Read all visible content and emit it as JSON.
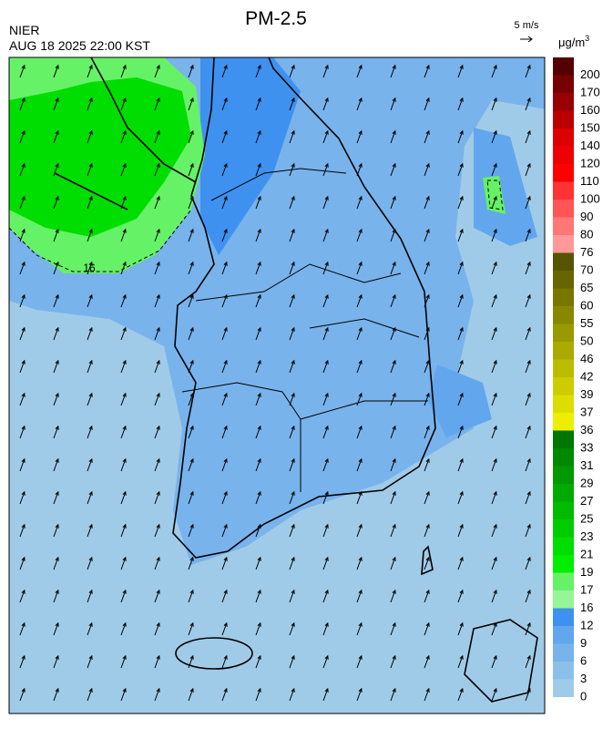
{
  "header": {
    "title": "PM-2.5",
    "source": "NIER",
    "timestamp": "AUG 18 2025 22:00 KST",
    "wind_reference": "5 m/s"
  },
  "colorbar": {
    "unit": "μg/m",
    "unit_exponent": "3",
    "levels": [
      0,
      3,
      6,
      9,
      12,
      16,
      17,
      19,
      21,
      23,
      25,
      27,
      29,
      31,
      33,
      36,
      37,
      39,
      42,
      46,
      50,
      55,
      60,
      65,
      70,
      76,
      80,
      90,
      100,
      110,
      120,
      140,
      150,
      160,
      170,
      200
    ],
    "colors": [
      "#a0cbe8",
      "#8cc0ea",
      "#78b3ec",
      "#62a6ee",
      "#3f91f0",
      "#96f596",
      "#66f266",
      "#00ee00",
      "#00dd00",
      "#00cc00",
      "#00bb00",
      "#00aa00",
      "#009900",
      "#008800",
      "#007700",
      "#eeee00",
      "#dddd00",
      "#cccc00",
      "#bbbb00",
      "#aaaa00",
      "#999900",
      "#888800",
      "#777700",
      "#666600",
      "#555500",
      "#ff9999",
      "#ff7777",
      "#ff5555",
      "#ff3333",
      "#ff0000",
      "#ee0000",
      "#dd0000",
      "#bb0000",
      "#990000",
      "#770000",
      "#550000"
    ]
  },
  "map": {
    "contour_label": "16"
  }
}
